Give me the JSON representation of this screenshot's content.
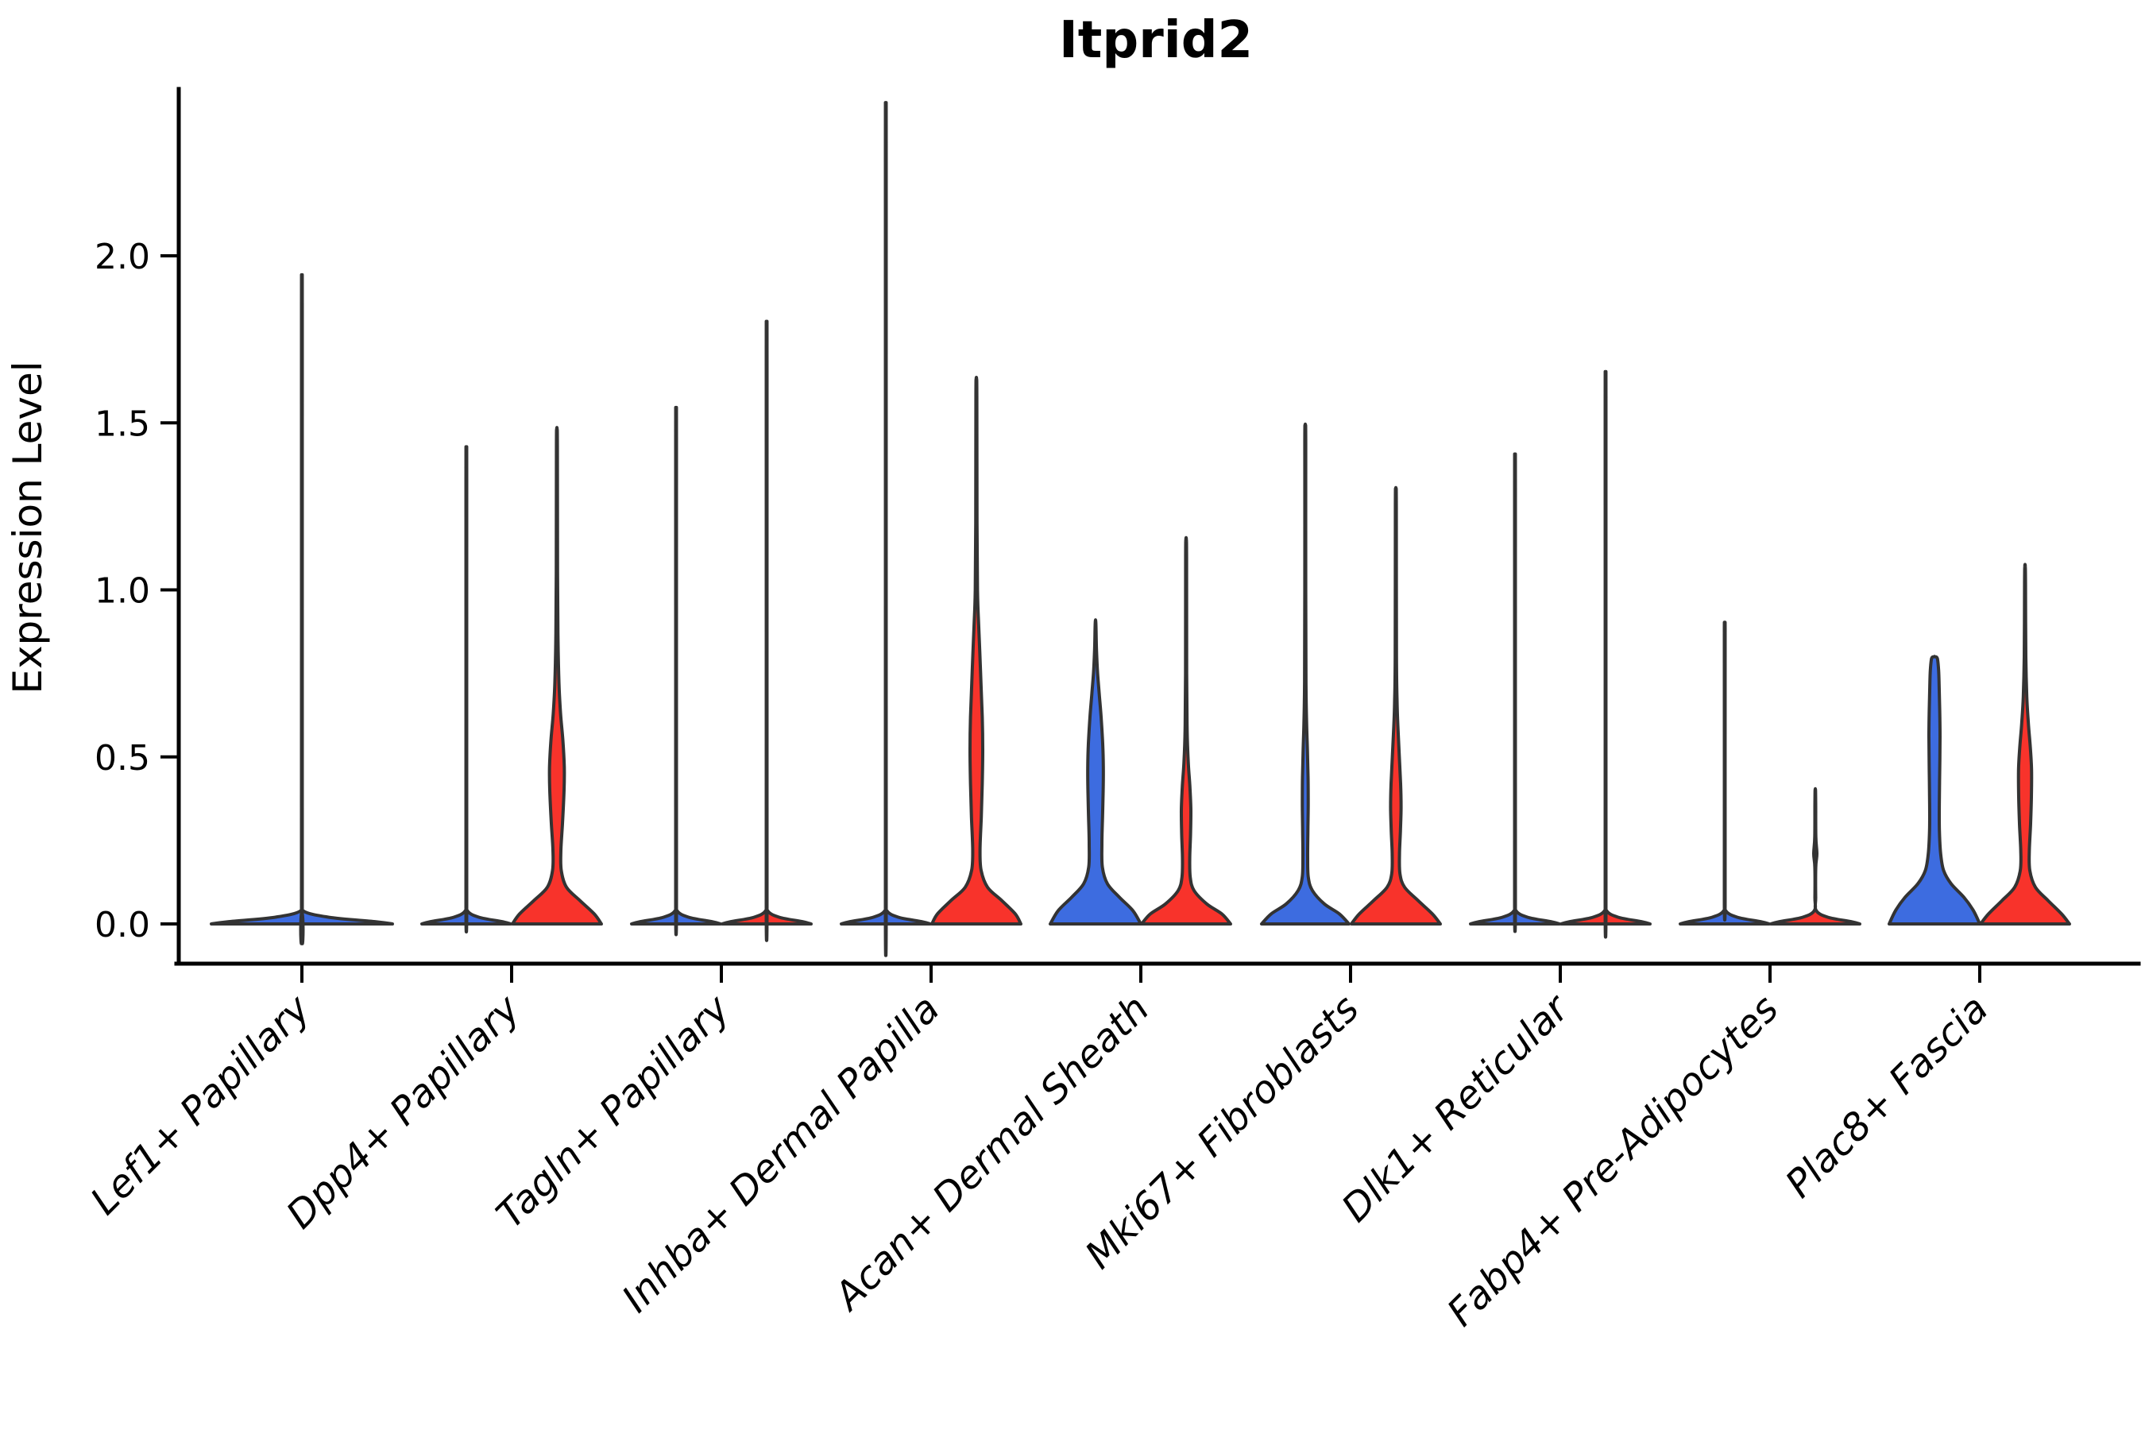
{
  "chart_data": {
    "type": "violin",
    "title": "Itprid2",
    "xlabel": "",
    "ylabel": "Expression Level",
    "ylim": [
      0,
      2.45
    ],
    "yticks": [
      0.0,
      0.5,
      1.0,
      1.5,
      2.0
    ],
    "ytick_labels": [
      "0.0",
      "0.5",
      "1.0",
      "1.5",
      "2.0"
    ],
    "grid": false,
    "legend": "none",
    "categories": [
      "Lef1+ Papillary",
      "Dpp4+ Papillary",
      "Tagln+ Papillary",
      "Inhba+ Dermal Papilla",
      "Acan+ Dermal Sheath",
      "Mki67+ Fibroblasts",
      "Dlk1+ Reticular",
      "Fabp4+ Pre-Adipocytes",
      "Plac8+ Fascia"
    ],
    "palette": {
      "blue": "#3D6CE0",
      "red": "#F8332B",
      "outline": "#333333",
      "axis": "#000000"
    },
    "violins": [
      {
        "category_index": 0,
        "side": 0,
        "color": "blue",
        "max_value": 1.85,
        "profile": [
          [
            0,
            114
          ],
          [
            0.007,
            92
          ],
          [
            0.02,
            34
          ],
          [
            0.04,
            1.2
          ],
          [
            0.08,
            0.5
          ],
          [
            1.8,
            0.5
          ],
          [
            1.85,
            0.3
          ]
        ]
      },
      {
        "category_index": 1,
        "side": -1,
        "color": "blue",
        "max_value": 1.37,
        "profile": [
          [
            0,
            56
          ],
          [
            0.007,
            45
          ],
          [
            0.02,
            16
          ],
          [
            0.04,
            1.2
          ],
          [
            0.08,
            0.5
          ],
          [
            1.32,
            0.5
          ],
          [
            1.37,
            0.3
          ]
        ]
      },
      {
        "category_index": 1,
        "side": 1,
        "color": "red",
        "max_value": 1.48,
        "profile": [
          [
            0,
            56
          ],
          [
            0.03,
            47
          ],
          [
            0.07,
            29
          ],
          [
            0.11,
            12
          ],
          [
            0.16,
            5.5
          ],
          [
            0.22,
            5
          ],
          [
            0.3,
            7
          ],
          [
            0.4,
            9
          ],
          [
            0.47,
            9.3
          ],
          [
            0.55,
            7.5
          ],
          [
            0.63,
            4.6
          ],
          [
            0.72,
            2.6
          ],
          [
            0.85,
            1.4
          ],
          [
            1.05,
            0.8
          ],
          [
            1.43,
            0.6
          ],
          [
            1.48,
            0.3
          ]
        ]
      },
      {
        "category_index": 2,
        "side": -1,
        "color": "blue",
        "max_value": 1.48,
        "profile": [
          [
            0,
            56
          ],
          [
            0.007,
            45
          ],
          [
            0.02,
            16
          ],
          [
            0.04,
            1.2
          ],
          [
            0.08,
            0.5
          ],
          [
            1.43,
            0.5
          ],
          [
            1.48,
            0.3
          ]
        ]
      },
      {
        "category_index": 2,
        "side": 1,
        "color": "red",
        "max_value": 1.72,
        "profile": [
          [
            0,
            56
          ],
          [
            0.007,
            45
          ],
          [
            0.02,
            16
          ],
          [
            0.04,
            1.2
          ],
          [
            0.08,
            0.5
          ],
          [
            1.67,
            0.5
          ],
          [
            1.72,
            0.3
          ]
        ]
      },
      {
        "category_index": 3,
        "side": -1,
        "color": "blue",
        "max_value": 2.33,
        "profile": [
          [
            0,
            56
          ],
          [
            0.007,
            45
          ],
          [
            0.02,
            16
          ],
          [
            0.04,
            1.2
          ],
          [
            0.08,
            0.5
          ],
          [
            2.28,
            0.5
          ],
          [
            2.33,
            0.3
          ]
        ]
      },
      {
        "category_index": 3,
        "side": 1,
        "color": "red",
        "max_value": 1.63,
        "profile": [
          [
            0,
            56
          ],
          [
            0.03,
            49
          ],
          [
            0.07,
            32
          ],
          [
            0.11,
            14
          ],
          [
            0.16,
            6
          ],
          [
            0.22,
            4.6
          ],
          [
            0.32,
            6.2
          ],
          [
            0.42,
            7.4
          ],
          [
            0.52,
            8
          ],
          [
            0.62,
            7.4
          ],
          [
            0.72,
            5.8
          ],
          [
            0.82,
            4.2
          ],
          [
            0.9,
            2.8
          ],
          [
            1.0,
            1.4
          ],
          [
            1.2,
            0.8
          ],
          [
            1.58,
            0.6
          ],
          [
            1.63,
            0.3
          ]
        ]
      },
      {
        "category_index": 4,
        "side": -1,
        "color": "blue",
        "max_value": 0.9,
        "profile": [
          [
            0,
            57
          ],
          [
            0.04,
            47
          ],
          [
            0.08,
            30
          ],
          [
            0.12,
            15
          ],
          [
            0.17,
            8.6
          ],
          [
            0.24,
            8.0
          ],
          [
            0.32,
            8.8
          ],
          [
            0.4,
            9.6
          ],
          [
            0.47,
            9.8
          ],
          [
            0.54,
            9
          ],
          [
            0.62,
            7
          ],
          [
            0.69,
            4.6
          ],
          [
            0.75,
            2.6
          ],
          [
            0.82,
            1.2
          ],
          [
            0.9,
            0.4
          ]
        ]
      },
      {
        "category_index": 4,
        "side": 1,
        "color": "red",
        "max_value": 1.15,
        "profile": [
          [
            0,
            56
          ],
          [
            0.03,
            45
          ],
          [
            0.06,
            26
          ],
          [
            0.1,
            10
          ],
          [
            0.14,
            5.2
          ],
          [
            0.2,
            4.6
          ],
          [
            0.27,
            5.6
          ],
          [
            0.34,
            6
          ],
          [
            0.41,
            4.8
          ],
          [
            0.48,
            2.8
          ],
          [
            0.58,
            1.3
          ],
          [
            0.75,
            0.7
          ],
          [
            1.1,
            0.6
          ],
          [
            1.15,
            0.3
          ]
        ]
      },
      {
        "category_index": 5,
        "side": -1,
        "color": "blue",
        "max_value": 1.49,
        "profile": [
          [
            0,
            55
          ],
          [
            0.03,
            43
          ],
          [
            0.06,
            24
          ],
          [
            0.1,
            9
          ],
          [
            0.14,
            3.8
          ],
          [
            0.2,
            3.0
          ],
          [
            0.28,
            3.3
          ],
          [
            0.36,
            3.7
          ],
          [
            0.44,
            3.5
          ],
          [
            0.52,
            2.7
          ],
          [
            0.6,
            1.7
          ],
          [
            0.72,
            0.9
          ],
          [
            1.0,
            0.6
          ],
          [
            1.44,
            0.6
          ],
          [
            1.49,
            0.3
          ]
        ]
      },
      {
        "category_index": 5,
        "side": 1,
        "color": "red",
        "max_value": 1.3,
        "profile": [
          [
            0,
            56
          ],
          [
            0.03,
            46
          ],
          [
            0.07,
            28
          ],
          [
            0.11,
            11
          ],
          [
            0.15,
            5.2
          ],
          [
            0.21,
            4.6
          ],
          [
            0.28,
            5.8
          ],
          [
            0.35,
            6.6
          ],
          [
            0.42,
            6
          ],
          [
            0.5,
            4.4
          ],
          [
            0.58,
            2.8
          ],
          [
            0.66,
            1.6
          ],
          [
            0.8,
            0.8
          ],
          [
            1.25,
            0.6
          ],
          [
            1.3,
            0.3
          ]
        ]
      },
      {
        "category_index": 6,
        "side": -1,
        "color": "blue",
        "max_value": 1.35,
        "profile": [
          [
            0,
            56
          ],
          [
            0.007,
            45
          ],
          [
            0.02,
            16
          ],
          [
            0.04,
            1.2
          ],
          [
            0.08,
            0.5
          ],
          [
            1.3,
            0.5
          ],
          [
            1.35,
            0.3
          ]
        ]
      },
      {
        "category_index": 6,
        "side": 1,
        "color": "red",
        "max_value": 1.58,
        "profile": [
          [
            0,
            56
          ],
          [
            0.007,
            45
          ],
          [
            0.02,
            16
          ],
          [
            0.04,
            1.2
          ],
          [
            0.08,
            0.5
          ],
          [
            1.53,
            0.5
          ],
          [
            1.58,
            0.3
          ]
        ]
      },
      {
        "category_index": 7,
        "side": -1,
        "color": "blue",
        "max_value": 0.88,
        "profile": [
          [
            0,
            56
          ],
          [
            0.007,
            45
          ],
          [
            0.02,
            16
          ],
          [
            0.04,
            1.2
          ],
          [
            0.08,
            0.5
          ],
          [
            0.83,
            0.5
          ],
          [
            0.88,
            0.3
          ]
        ]
      },
      {
        "category_index": 7,
        "side": 1,
        "color": "red",
        "max_value": 0.4,
        "profile": [
          [
            0,
            56
          ],
          [
            0.007,
            45
          ],
          [
            0.02,
            16
          ],
          [
            0.04,
            1.2
          ],
          [
            0.08,
            0.5
          ],
          [
            0.17,
            0.6
          ],
          [
            0.21,
            2.0
          ],
          [
            0.26,
            0.7
          ],
          [
            0.36,
            0.5
          ],
          [
            0.4,
            0.3
          ]
        ]
      },
      {
        "category_index": 8,
        "side": -1,
        "color": "blue",
        "max_value": 0.8,
        "profile": [
          [
            0,
            57
          ],
          [
            0.04,
            49
          ],
          [
            0.08,
            37
          ],
          [
            0.12,
            21
          ],
          [
            0.16,
            11.5
          ],
          [
            0.21,
            7.8
          ],
          [
            0.28,
            6.2
          ],
          [
            0.36,
            6.1
          ],
          [
            0.46,
            6.6
          ],
          [
            0.56,
            7
          ],
          [
            0.64,
            6.6
          ],
          [
            0.71,
            5.9
          ],
          [
            0.76,
            5.2
          ],
          [
            0.795,
            3.6
          ],
          [
            0.8,
            0.4
          ]
        ]
      },
      {
        "category_index": 8,
        "side": 1,
        "color": "red",
        "max_value": 1.07,
        "profile": [
          [
            0,
            56
          ],
          [
            0.03,
            46
          ],
          [
            0.07,
            29
          ],
          [
            0.11,
            13
          ],
          [
            0.16,
            6
          ],
          [
            0.22,
            5.4
          ],
          [
            0.3,
            7
          ],
          [
            0.38,
            8
          ],
          [
            0.46,
            8.2
          ],
          [
            0.53,
            6.6
          ],
          [
            0.6,
            4.2
          ],
          [
            0.68,
            2.2
          ],
          [
            0.8,
            1.0
          ],
          [
            1.02,
            0.6
          ],
          [
            1.07,
            0.3
          ]
        ]
      }
    ]
  }
}
